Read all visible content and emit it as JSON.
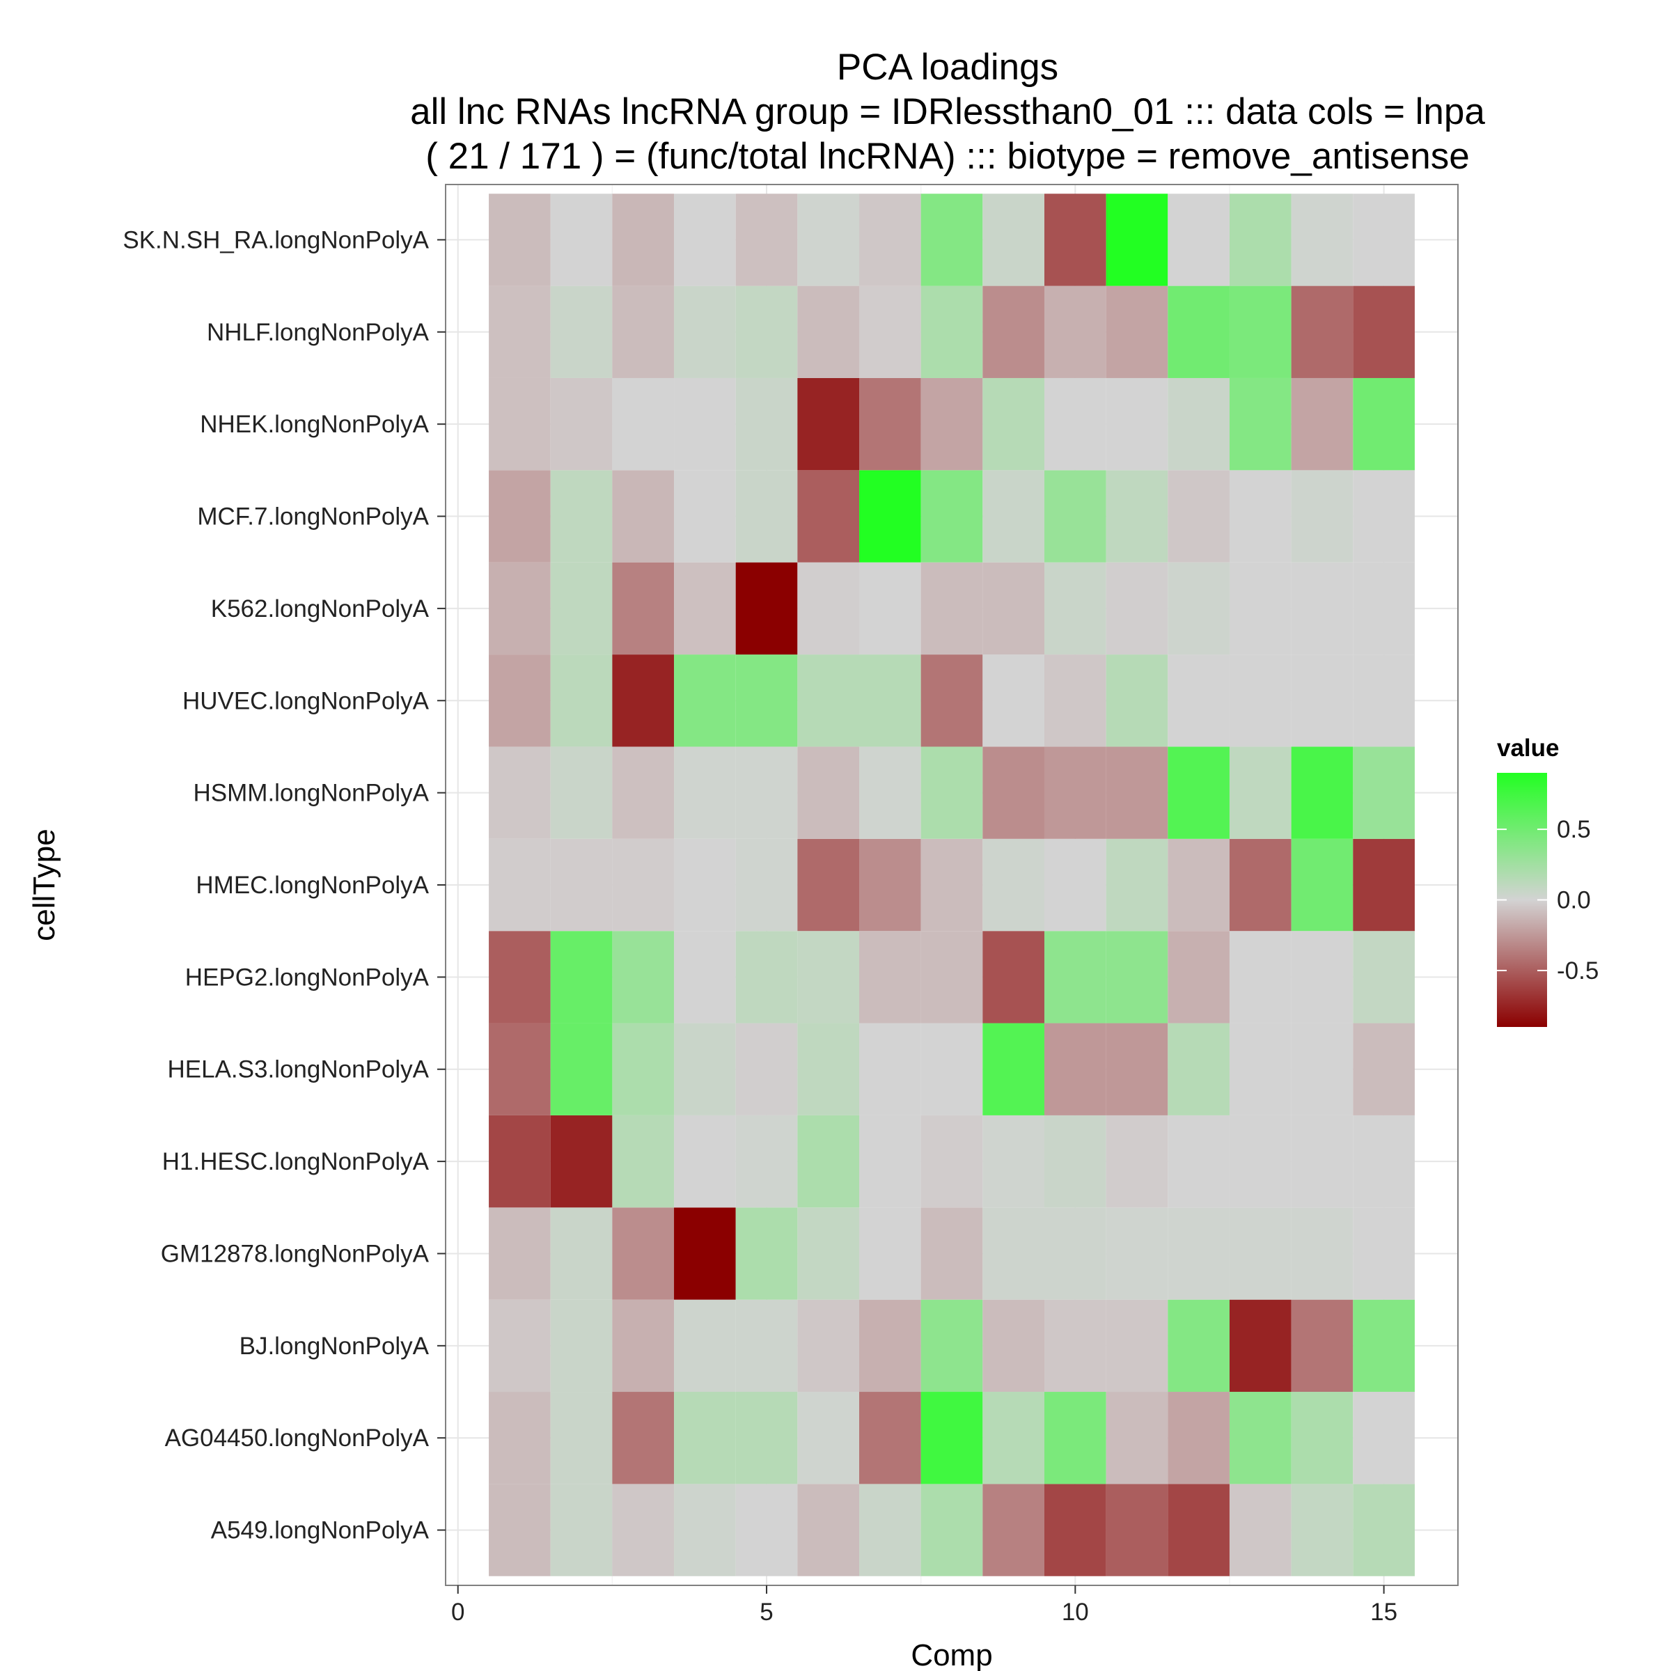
{
  "chart_data": {
    "type": "heatmap",
    "title": "PCA loadings",
    "subtitle_lines": [
      "all lnc RNAs lncRNA group = IDRlessthan0_01 ::: data cols = lnpa",
      "( 21 / 171 ) = (func/total lncRNA) ::: biotype = remove_antisense"
    ],
    "xlabel": "Comp",
    "ylabel": "cellType",
    "x": [
      1,
      2,
      3,
      4,
      5,
      6,
      7,
      8,
      9,
      10,
      11,
      12,
      13,
      14,
      15
    ],
    "xlim": [
      -0.2,
      16.2
    ],
    "xticks": [
      0,
      5,
      10,
      15
    ],
    "y": [
      "A549.longNonPolyA",
      "AG04450.longNonPolyA",
      "BJ.longNonPolyA",
      "GM12878.longNonPolyA",
      "H1.HESC.longNonPolyA",
      "HELA.S3.longNonPolyA",
      "HEPG2.longNonPolyA",
      "HMEC.longNonPolyA",
      "HSMM.longNonPolyA",
      "HUVEC.longNonPolyA",
      "K562.longNonPolyA",
      "MCF.7.longNonPolyA",
      "NHEK.longNonPolyA",
      "NHLF.longNonPolyA",
      "SK.N.SH_RA.longNonPolyA"
    ],
    "values": [
      [
        -0.1,
        0.05,
        -0.05,
        0.03,
        0.0,
        -0.1,
        0.05,
        0.2,
        -0.35,
        -0.6,
        -0.5,
        -0.6,
        -0.05,
        0.08,
        0.15
      ],
      [
        -0.1,
        0.05,
        -0.4,
        0.15,
        0.15,
        0.02,
        -0.4,
        0.75,
        0.15,
        0.45,
        -0.1,
        -0.2,
        0.35,
        0.2,
        0.0
      ],
      [
        -0.05,
        0.05,
        -0.15,
        0.03,
        0.03,
        -0.05,
        -0.15,
        0.35,
        -0.1,
        -0.05,
        -0.05,
        0.4,
        -0.75,
        -0.4,
        0.4
      ],
      [
        -0.1,
        0.05,
        -0.3,
        -0.9,
        0.2,
        0.08,
        0.0,
        -0.1,
        0.03,
        0.03,
        0.02,
        0.02,
        0.02,
        0.02,
        0.0
      ],
      [
        -0.6,
        -0.75,
        0.15,
        0.0,
        0.02,
        0.2,
        0.0,
        -0.03,
        0.02,
        0.05,
        -0.03,
        0.0,
        0.0,
        0.0,
        0.0
      ],
      [
        -0.45,
        0.55,
        0.2,
        0.05,
        -0.02,
        0.1,
        0.0,
        0.0,
        0.65,
        -0.25,
        -0.25,
        0.15,
        0.0,
        0.0,
        -0.1
      ],
      [
        -0.5,
        0.55,
        0.3,
        0.0,
        0.1,
        0.08,
        -0.1,
        -0.1,
        -0.55,
        0.35,
        0.35,
        -0.15,
        0.0,
        0.0,
        0.08
      ],
      [
        -0.03,
        -0.03,
        -0.03,
        0.0,
        0.02,
        -0.45,
        -0.3,
        -0.1,
        0.03,
        0.0,
        0.1,
        -0.1,
        -0.45,
        0.5,
        -0.65
      ],
      [
        -0.05,
        0.05,
        -0.08,
        0.02,
        0.02,
        -0.1,
        0.02,
        0.2,
        -0.3,
        -0.25,
        -0.25,
        0.65,
        0.1,
        0.7,
        0.3
      ],
      [
        -0.2,
        0.12,
        -0.75,
        0.4,
        0.4,
        0.15,
        0.15,
        -0.4,
        0.0,
        -0.05,
        0.15,
        0.0,
        0.0,
        0.0,
        0.0
      ],
      [
        -0.15,
        0.1,
        -0.35,
        -0.08,
        -0.9,
        -0.02,
        0.0,
        -0.1,
        -0.1,
        0.05,
        -0.02,
        0.03,
        0.0,
        0.0,
        0.0
      ],
      [
        -0.2,
        0.1,
        -0.12,
        0.0,
        0.05,
        -0.5,
        0.9,
        0.4,
        0.05,
        0.3,
        0.1,
        -0.05,
        0.0,
        0.03,
        0.0
      ],
      [
        -0.08,
        -0.05,
        0.0,
        0.0,
        0.05,
        -0.75,
        -0.4,
        -0.2,
        0.15,
        0.0,
        0.0,
        0.05,
        0.4,
        -0.2,
        0.5
      ],
      [
        -0.08,
        0.05,
        -0.1,
        0.05,
        0.08,
        -0.1,
        -0.03,
        0.2,
        -0.3,
        -0.15,
        -0.2,
        0.5,
        0.45,
        -0.45,
        -0.55
      ],
      [
        -0.1,
        0.0,
        -0.12,
        0.0,
        -0.08,
        0.02,
        -0.05,
        0.4,
        0.05,
        -0.55,
        0.9,
        0.0,
        0.2,
        0.02,
        0.0
      ]
    ],
    "color_scale": {
      "low": "#8B0000",
      "mid": "#D3D3D3",
      "high": "#22FF22",
      "min": -0.9,
      "max": 0.9,
      "breaks": [
        0.5,
        0.0,
        -0.5
      ],
      "break_labels": [
        "0.5",
        "0.0",
        "-0.5"
      ]
    },
    "legend": {
      "title": "value",
      "position": "right"
    },
    "grid": true,
    "panel_background": "#ffffff",
    "panel_border": "#808080"
  }
}
